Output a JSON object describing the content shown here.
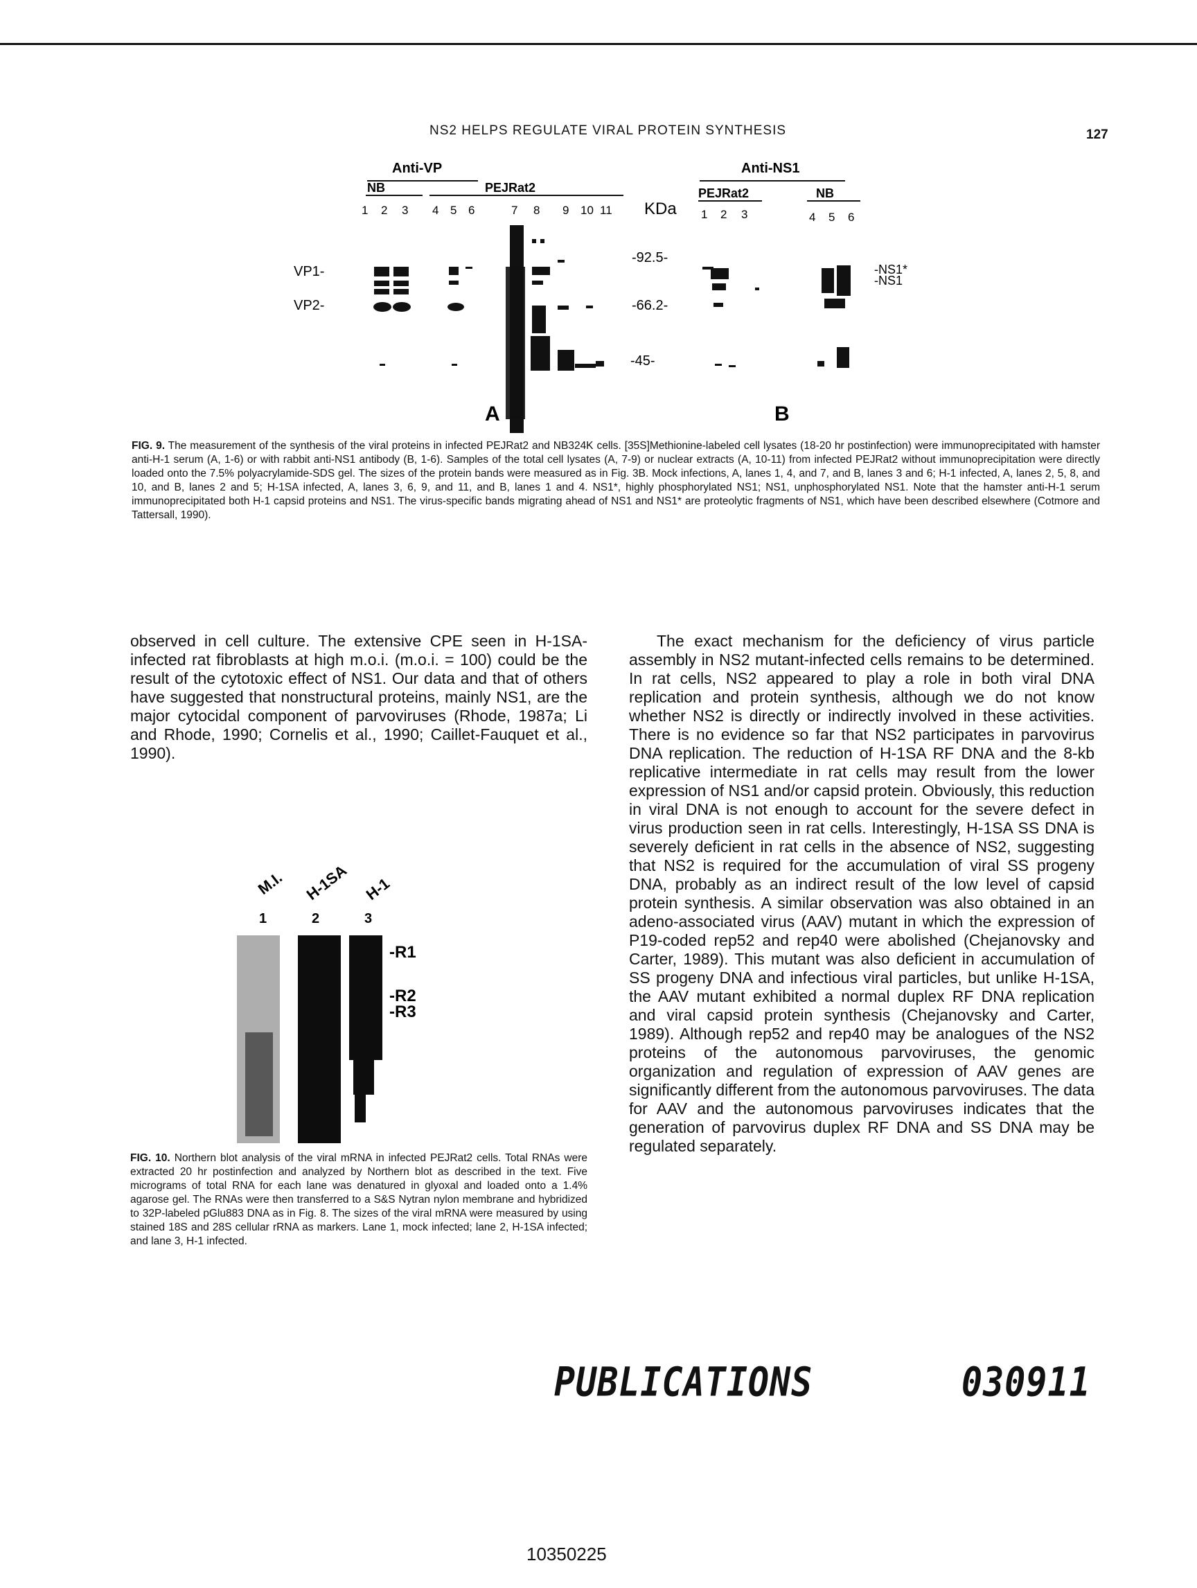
{
  "header": {
    "running_head": "NS2 HELPS REGULATE VIRAL PROTEIN SYNTHESIS",
    "page_number": "127"
  },
  "figure9": {
    "group_anti_vp": "Anti-VP",
    "group_anti_ns1": "Anti-NS1",
    "nb_label": "NB",
    "pejrat2_label": "PEJRat2",
    "lanes_a": [
      "1",
      "2",
      "3",
      "4",
      "5",
      "6",
      "7",
      "8",
      "9",
      "10",
      "11"
    ],
    "lanes_b": [
      "1",
      "2",
      "3",
      "4",
      "5",
      "6"
    ],
    "kda_label": "KDa",
    "markers": [
      "-92.5-",
      "-66.2-",
      "-45-"
    ],
    "left_labels": [
      "VP1-",
      "VP2-"
    ],
    "right_labels": [
      "-NS1*",
      "-NS1"
    ],
    "panel_a": "A",
    "panel_b": "B",
    "caption_label": "FIG. 9.",
    "caption_text": "The measurement of the synthesis of the viral proteins in infected PEJRat2 and NB324K cells. [35S]Methionine-labeled cell lysates (18-20 hr postinfection) were immunoprecipitated with hamster anti-H-1 serum (A, 1-6) or with rabbit anti-NS1 antibody (B, 1-6). Samples of the total cell lysates (A, 7-9) or nuclear extracts (A, 10-11) from infected PEJRat2 without immunoprecipitation were directly loaded onto the 7.5% polyacrylamide-SDS gel. The sizes of the protein bands were measured as in Fig. 3B. Mock infections, A, lanes 1, 4, and 7, and B, lanes 3 and 6; H-1 infected, A, lanes 2, 5, 8, and 10, and B, lanes 2 and 5; H-1SA infected, A, lanes 3, 6, 9, and 11, and B, lanes 1 and 4. NS1*, highly phosphorylated NS1; NS1, unphosphorylated NS1. Note that the hamster anti-H-1 serum immunoprecipitated both H-1 capsid proteins and NS1. The virus-specific bands migrating ahead of NS1 and NS1* are proteolytic fragments of NS1, which have been described elsewhere (Cotmore and Tattersall, 1990)."
  },
  "left_column": {
    "paragraph": "observed in cell culture. The extensive CPE seen in H-1SA-infected rat fibroblasts at high m.o.i. (m.o.i. = 100) could be the result of the cytotoxic effect of NS1. Our data and that of others have suggested that nonstructural proteins, mainly NS1, are the major cytocidal component of parvoviruses (Rhode, 1987a; Li and Rhode, 1990; Cornelis et al., 1990; Caillet-Fauquet et al., 1990)."
  },
  "figure10": {
    "lane_names": [
      "M.I.",
      "H-1SA",
      "H-1"
    ],
    "lane_numbers": [
      "1",
      "2",
      "3"
    ],
    "band_labels": [
      "-R1",
      "-R2",
      "-R3"
    ],
    "caption_label": "FIG. 10.",
    "caption_text": "Northern blot analysis of the viral mRNA in infected PEJRat2 cells. Total RNAs were extracted 20 hr postinfection and analyzed by Northern blot as described in the text. Five micrograms of total RNA for each lane was denatured in glyoxal and loaded onto a 1.4% agarose gel. The RNAs were then transferred to a S&S Nytran nylon membrane and hybridized to 32P-labeled pGlu883 DNA as in Fig. 8. The sizes of the viral mRNA were measured by using stained 18S and 28S cellular rRNA as markers. Lane 1, mock infected; lane 2, H-1SA infected; and lane 3, H-1 infected."
  },
  "right_column": {
    "paragraph": "The exact mechanism for the deficiency of virus particle assembly in NS2 mutant-infected cells remains to be determined. In rat cells, NS2 appeared to play a role in both viral DNA replication and protein synthesis, although we do not know whether NS2 is directly or indirectly involved in these activities. There is no evidence so far that NS2 participates in parvovirus DNA replication. The reduction of H-1SA RF DNA and the 8-kb replicative intermediate in rat cells may result from the lower expression of NS1 and/or capsid protein. Obviously, this reduction in viral DNA is not enough to account for the severe defect in virus production seen in rat cells. Interestingly, H-1SA SS DNA is severely deficient in rat cells in the absence of NS2, suggesting that NS2 is required for the accumulation of viral SS progeny DNA, probably as an indirect result of the low level of capsid protein synthesis. A similar observation was also obtained in an adeno-associated virus (AAV) mutant in which the expression of P19-coded rep52 and rep40 were abolished (Chejanovsky and Carter, 1989). This mutant was also deficient in accumulation of SS progeny DNA and infectious viral particles, but unlike H-1SA, the AAV mutant exhibited a normal duplex RF DNA replication and viral capsid protein synthesis (Chejanovsky and Carter, 1989). Although rep52 and rep40 may be analogues of the NS2 proteins of the autonomous parvoviruses, the genomic organization and regulation of expression of AAV genes are significantly different from the autonomous parvoviruses. The data for AAV and the autonomous parvoviruses indicates that the generation of parvovirus duplex RF DNA and SS DNA may be regulated separately."
  },
  "footer": {
    "stamp_left": "PUBLICATIONS",
    "stamp_right": "030911",
    "doc_id": "10350225"
  }
}
